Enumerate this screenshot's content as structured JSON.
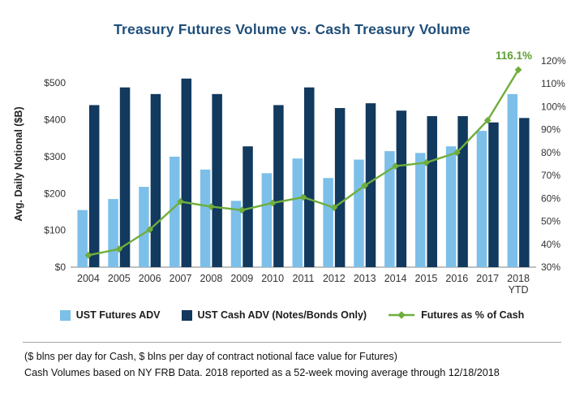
{
  "title": "Treasury Futures Volume vs. Cash Treasury Volume",
  "colors": {
    "title": "#1F4E79",
    "futures_bar": "#7CBFE9",
    "cash_bar": "#12395E",
    "percent_line": "#6FAE3C",
    "annotation": "#5F9E33",
    "axis_text": "#333333"
  },
  "chart_data": {
    "type": "bar",
    "title": "Treasury Futures Volume vs. Cash Treasury Volume",
    "categories": [
      "2004",
      "2005",
      "2006",
      "2007",
      "2008",
      "2009",
      "2010",
      "2011",
      "2012",
      "2013",
      "2014",
      "2015",
      "2016",
      "2017",
      "2018"
    ],
    "last_category_note": "YTD",
    "grid": false,
    "legend_position": "bottom",
    "series": [
      {
        "name": "UST Futures ADV",
        "type": "bar",
        "axis": "left",
        "color": "#7CBFE9",
        "values": [
          155,
          185,
          218,
          300,
          265,
          180,
          255,
          295,
          242,
          292,
          315,
          310,
          328,
          370,
          470
        ]
      },
      {
        "name": "UST Cash ADV (Notes/Bonds Only)",
        "type": "bar",
        "axis": "left",
        "color": "#12395E",
        "values": [
          440,
          488,
          470,
          512,
          470,
          328,
          440,
          488,
          432,
          445,
          425,
          410,
          410,
          393,
          405
        ]
      },
      {
        "name": "Futures as % of Cash",
        "type": "line",
        "axis": "right",
        "color": "#6FAE3C",
        "values": [
          35.2,
          37.9,
          46.4,
          58.6,
          56.4,
          54.9,
          58.0,
          60.5,
          56.0,
          65.6,
          74.1,
          75.6,
          80.0,
          94.1,
          116.1
        ]
      }
    ],
    "left_axis": {
      "label": "Avg. Daily Notional ($B)",
      "min": 0,
      "max": 560,
      "ticks": [
        {
          "value": 0,
          "label": "$0"
        },
        {
          "value": 100,
          "label": "$100"
        },
        {
          "value": 200,
          "label": "$200"
        },
        {
          "value": 300,
          "label": "$300"
        },
        {
          "value": 400,
          "label": "$400"
        },
        {
          "value": 500,
          "label": "$500"
        }
      ]
    },
    "right_axis": {
      "min": 30,
      "max": 120,
      "ticks": [
        {
          "value": 30,
          "label": "30%"
        },
        {
          "value": 40,
          "label": "40%"
        },
        {
          "value": 50,
          "label": "50%"
        },
        {
          "value": 60,
          "label": "60%"
        },
        {
          "value": 70,
          "label": "70%"
        },
        {
          "value": 80,
          "label": "80%"
        },
        {
          "value": 90,
          "label": "90%"
        },
        {
          "value": 100,
          "label": "100%"
        },
        {
          "value": 110,
          "label": "110%"
        },
        {
          "value": 120,
          "label": "120%"
        }
      ]
    },
    "annotation": {
      "text": "116.1%",
      "series": "Futures as % of Cash",
      "category": "2018"
    }
  },
  "footnotes": {
    "line1": "($ blns per day for Cash, $ blns per day of contract notional face value for Futures)",
    "line2": "Cash Volumes based on NY FRB Data. 2018 reported as a 52-week moving average through 12/18/2018"
  }
}
